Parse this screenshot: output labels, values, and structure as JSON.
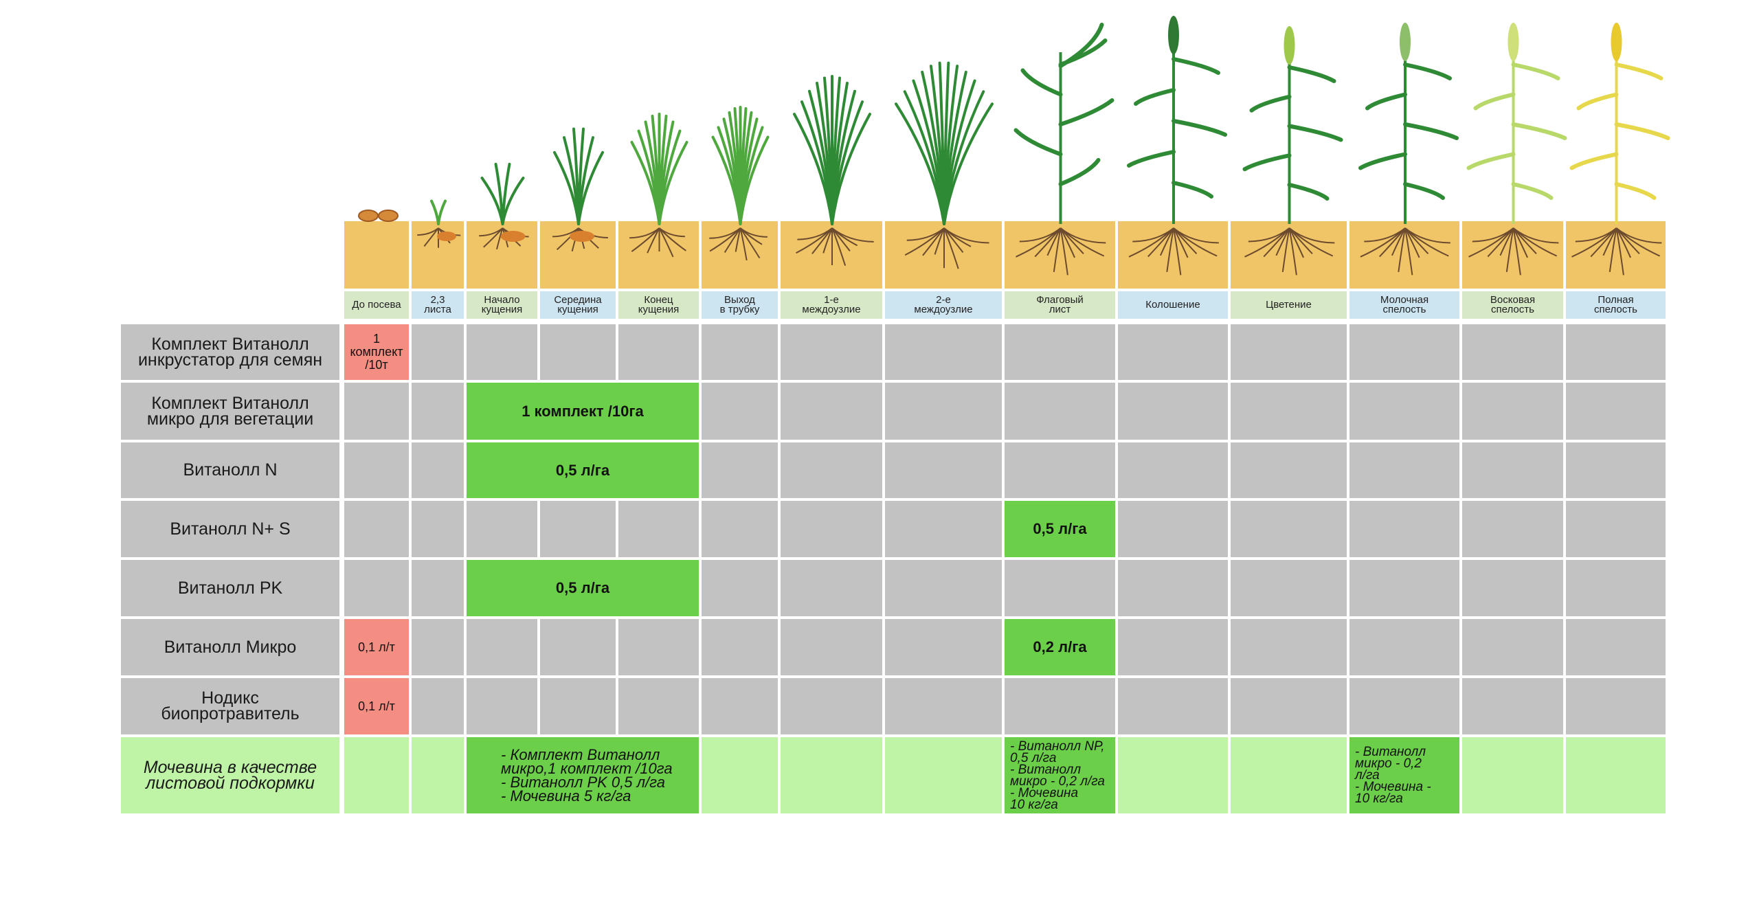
{
  "stages": [
    "До посева",
    "2,3\nлиста",
    "Начало\nкущения",
    "Середина\nкущения",
    "Конец\nкущения",
    "Выход\nв трубку",
    "1-е\nмеждоузлие",
    "2-е\nмеждоузлие",
    "Флаговый\nлист",
    "Колошение",
    "Цветение",
    "Молочная\nспелость",
    "Восковая\nспелость",
    "Полная\nспелость"
  ],
  "rows": [
    {
      "label": "Комплект Витанолл\nинкрустатор для семян",
      "italic": false
    },
    {
      "label": "Комплект Витанолл\nмикро для вегетации",
      "italic": false
    },
    {
      "label": "Витанолл N",
      "italic": false
    },
    {
      "label": "Витанолл N+ S",
      "italic": false
    },
    {
      "label": "Витанолл PK",
      "italic": false
    },
    {
      "label": "Витанолл Микро",
      "italic": false
    },
    {
      "label": "Нодикс\nбиопротравитель",
      "italic": false
    },
    {
      "label": "Мочевина в качестве\nлистовой подкормки",
      "italic": true
    }
  ],
  "applications": [
    {
      "row": 0,
      "col_start": 0,
      "col_end": 0,
      "text": "1\nкомплект\n/10т",
      "kind": "seed"
    },
    {
      "row": 1,
      "col_start": 2,
      "col_end": 4,
      "text": "1 комплект /10га",
      "kind": "foliar"
    },
    {
      "row": 2,
      "col_start": 2,
      "col_end": 4,
      "text": "0,5 л/га",
      "kind": "foliar"
    },
    {
      "row": 3,
      "col_start": 8,
      "col_end": 8,
      "text": "0,5 л/га",
      "kind": "foliar"
    },
    {
      "row": 4,
      "col_start": 2,
      "col_end": 4,
      "text": "0,5 л/га",
      "kind": "foliar"
    },
    {
      "row": 5,
      "col_start": 0,
      "col_end": 0,
      "text": "0,1 л/т",
      "kind": "seed"
    },
    {
      "row": 5,
      "col_start": 8,
      "col_end": 8,
      "text": "0,2 л/га",
      "kind": "foliar"
    },
    {
      "row": 6,
      "col_start": 0,
      "col_end": 0,
      "text": "0,1 л/т",
      "kind": "seed"
    },
    {
      "row": 7,
      "col_start": 2,
      "col_end": 4,
      "text": "- Комплект Витанолл\nмикро,1 комплект /10га\n- Витанолл PK 0,5 л/га\n- Мочевина 5 кг/га",
      "kind": "note"
    },
    {
      "row": 7,
      "col_start": 8,
      "col_end": 8,
      "text": "- Витанолл NP,\n0,5 л/га\n- Витанолл\nмикро - 0,2 л/га\n- Мочевина\n10 кг/га",
      "kind": "note"
    },
    {
      "row": 7,
      "col_start": 11,
      "col_end": 11,
      "text": "- Витанолл\nмикро - 0,2\nл/га\n- Мочевина -\n10 кг/га",
      "kind": "note"
    }
  ],
  "colors": {
    "soil": "#f0c567",
    "grid_cell": "#c3c2c2",
    "grid_line": "#ffffff",
    "stage_green": "#d7e8c7",
    "stage_blue": "#cde4f1",
    "seed_red": "#f48d82",
    "foliar_green": "#6ccf4a",
    "urea_row": "#bff4a6",
    "plant_dark": "#2f8a35",
    "plant_mid": "#4fa83e",
    "plant_yellow": "#e6d84a",
    "root": "#6b4a2e"
  }
}
